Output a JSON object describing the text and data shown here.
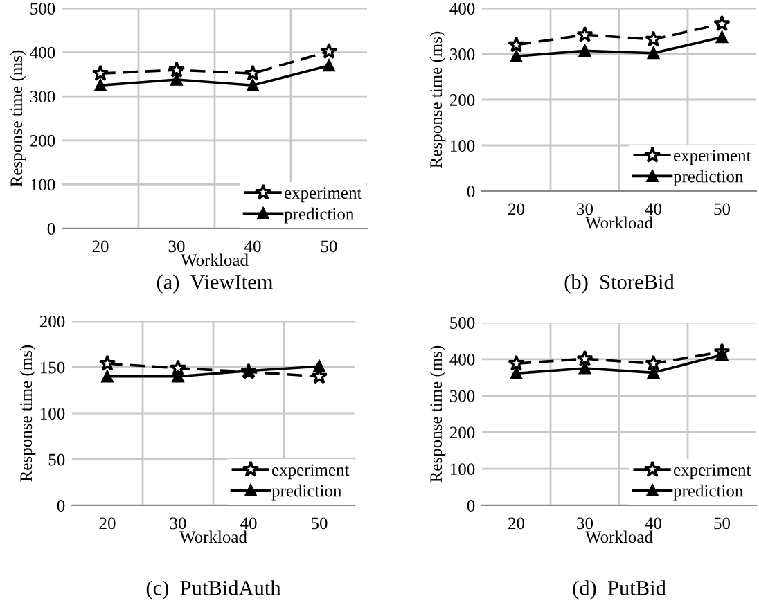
{
  "chart_data": [
    {
      "type": "line",
      "title": "(a)  ViewItem",
      "xlabel": "Workload",
      "ylabel": "Response time (ms)",
      "categories": [
        "20",
        "30",
        "40",
        "50"
      ],
      "ylim": [
        0,
        500
      ],
      "yticks": [
        0,
        100,
        200,
        300,
        400,
        500
      ],
      "grid": true,
      "legend": "bottom right",
      "series": [
        {
          "name": "experiment",
          "color": "#000000",
          "marker": "star",
          "line_style": "dashed",
          "values": [
            352,
            360,
            352,
            402
          ]
        },
        {
          "name": "prediction",
          "color": "#000000",
          "marker": "triangle",
          "line_style": "solid",
          "values": [
            325,
            338,
            325,
            370
          ]
        }
      ]
    },
    {
      "type": "line",
      "title": "(b)  StoreBid",
      "xlabel": "Workload",
      "ylabel": "Response time (ms)",
      "categories": [
        "20",
        "30",
        "40",
        "50"
      ],
      "ylim": [
        0,
        400
      ],
      "yticks": [
        0,
        100,
        200,
        300,
        400
      ],
      "grid": true,
      "legend": "bottom right",
      "series": [
        {
          "name": "experiment",
          "color": "#000000",
          "marker": "star",
          "line_style": "dashed",
          "values": [
            320,
            342,
            332,
            366
          ]
        },
        {
          "name": "prediction",
          "color": "#000000",
          "marker": "triangle",
          "line_style": "solid",
          "values": [
            295,
            307,
            302,
            337
          ]
        }
      ]
    },
    {
      "type": "line",
      "title": "(c)  PutBidAuth",
      "xlabel": "Workload",
      "ylabel": "Response time (ms)",
      "categories": [
        "20",
        "30",
        "40",
        "50"
      ],
      "ylim": [
        0,
        200
      ],
      "yticks": [
        0,
        50,
        100,
        150,
        200
      ],
      "grid": true,
      "legend": "bottom right",
      "series": [
        {
          "name": "experiment",
          "color": "#000000",
          "marker": "star",
          "line_style": "dashed",
          "values": [
            154,
            149,
            145,
            140
          ]
        },
        {
          "name": "prediction",
          "color": "#000000",
          "marker": "triangle",
          "line_style": "solid",
          "values": [
            140,
            140,
            146,
            151
          ]
        }
      ]
    },
    {
      "type": "line",
      "title": "(d)  PutBid",
      "xlabel": "Workload",
      "ylabel": "Response time (ms)",
      "categories": [
        "20",
        "30",
        "40",
        "50"
      ],
      "ylim": [
        0,
        500
      ],
      "yticks": [
        0,
        100,
        200,
        300,
        400,
        500
      ],
      "grid": true,
      "legend": "bottom right",
      "series": [
        {
          "name": "experiment",
          "color": "#000000",
          "marker": "star",
          "line_style": "dashed",
          "values": [
            388,
            401,
            388,
            420
          ]
        },
        {
          "name": "prediction",
          "color": "#000000",
          "marker": "triangle",
          "line_style": "solid",
          "values": [
            361,
            375,
            363,
            412
          ]
        }
      ]
    }
  ]
}
